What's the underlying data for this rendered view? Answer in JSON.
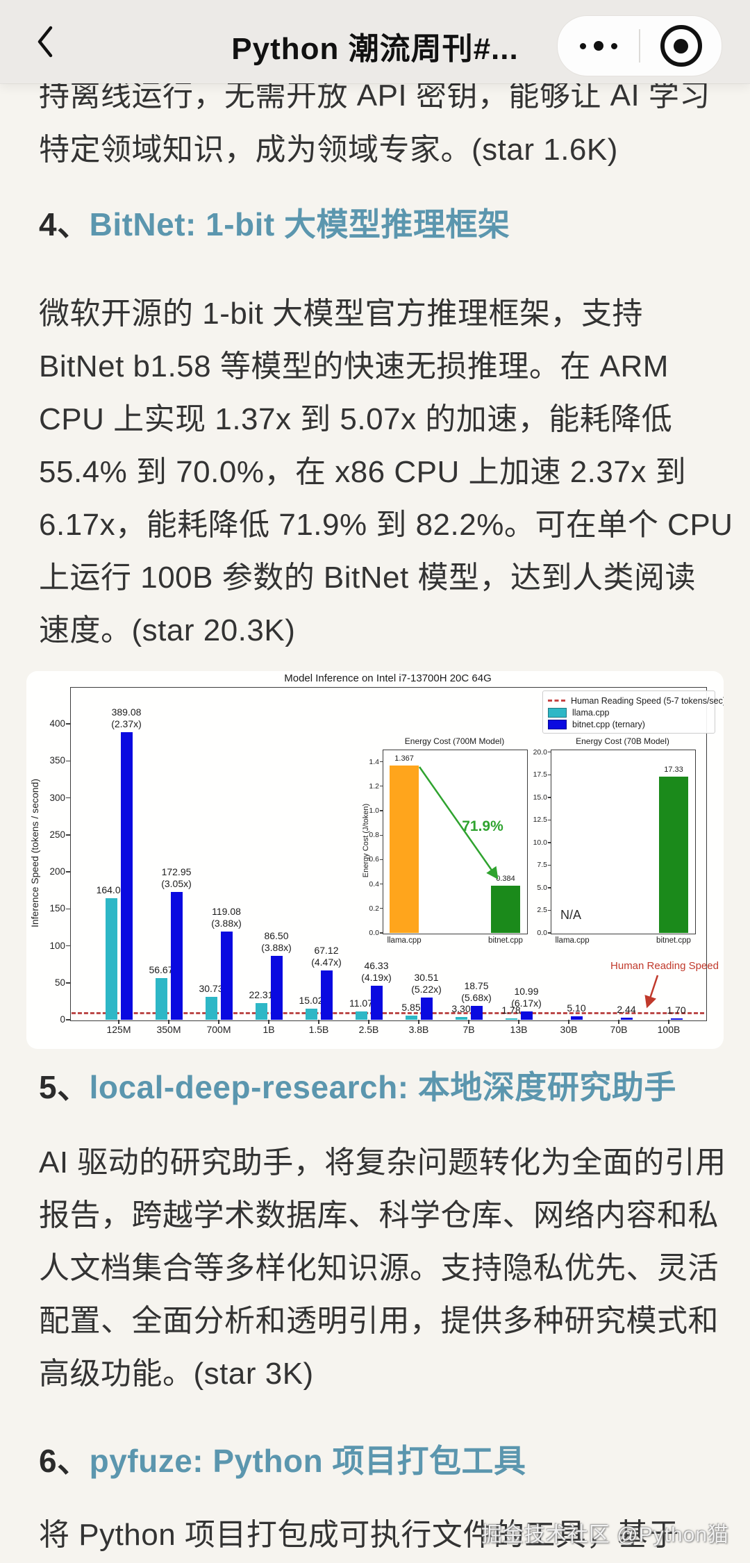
{
  "header": {
    "title": "Python 潮流周刊#...",
    "back_icon": "chevron-left",
    "more_icon": "three-dots",
    "capsule_icon": "target-circle"
  },
  "intro": {
    "lines": [
      "持离线运行，无需开放 API 密钥，能够让 AI 学习",
      "特定领域知识，成为领域专家。(star 1.6K)"
    ]
  },
  "sections": {
    "s4": {
      "number": "4、",
      "link_text": "BitNet: 1-bit 大模型推理框架",
      "lines": [
        "微软开源的 1-bit 大模型官方推理框架，支持",
        "BitNet b1.58 等模型的快速无损推理。在 ARM",
        "CPU 上实现 1.37x 到 5.07x 的加速，能耗降低",
        "55.4% 到 70.0%，在 x86 CPU 上加速 2.37x 到",
        "6.17x，能耗降低 71.9% 到 82.2%。可在单个 CPU",
        "上运行 100B 参数的 BitNet 模型，达到人类阅读",
        "速度。(star 20.3K)"
      ]
    },
    "s5": {
      "number": "5、",
      "link_text": "local-deep-research: 本地深度研究助手",
      "lines": [
        "AI 驱动的研究助手，将复杂问题转化为全面的引用",
        "报告，跨越学术数据库、科学仓库、网络内容和私",
        "人文档集合等多样化知识源。支持隐私优先、灵活",
        "配置、全面分析和透明引用，提供多种研究模式和",
        "高级功能。(star 3K)"
      ]
    },
    "s6": {
      "number": "6、",
      "link_text": "pyfuze: Python 项目打包工具",
      "lines": [
        "将 Python 项目打包成可执行文件的工具，基于"
      ]
    }
  },
  "watermark": "掘金技术社区 @Python猫",
  "chart_data": {
    "type": "bar",
    "title": "Model Inference on Intel i7-13700H 20C 64G",
    "ylabel": "Inference Speed (tokens / second)",
    "ylim": [
      0,
      450
    ],
    "yticks": [
      0,
      50,
      100,
      150,
      200,
      250,
      300,
      350,
      400
    ],
    "grid": false,
    "legend_position": "upper right",
    "categories": [
      "125M",
      "350M",
      "700M",
      "1B",
      "1.5B",
      "2.5B",
      "3.8B",
      "7B",
      "13B",
      "30B",
      "70B",
      "100B"
    ],
    "series": [
      {
        "name": "llama.cpp",
        "color": "#2eb7c6",
        "values": [
          164.04,
          56.67,
          30.73,
          22.31,
          15.02,
          11.07,
          5.85,
          3.3,
          1.78,
          null,
          null,
          null
        ]
      },
      {
        "name": "bitnet.cpp (ternary)",
        "color": "#0a0ae0",
        "values": [
          389.08,
          172.95,
          119.08,
          86.5,
          67.12,
          46.33,
          30.51,
          18.75,
          10.99,
          5.1,
          2.44,
          1.7
        ],
        "speedups": [
          "2.37x",
          "3.05x",
          "3.88x",
          "3.88x",
          "4.47x",
          "4.19x",
          "5.22x",
          "5.68x",
          "6.17x",
          null,
          null,
          null
        ]
      }
    ],
    "reference_line": {
      "value": 7,
      "color": "#b73a3a",
      "style": "dashed",
      "label": "Human Reading Speed (5-7 tokens/sec)"
    },
    "annotation": {
      "text": "Human Reading Speed",
      "color": "#c0392b"
    },
    "legend_items": [
      {
        "type": "dash",
        "color": "#c74444",
        "label": "Human Reading Speed (5-7 tokens/sec)"
      },
      {
        "type": "patch",
        "color": "#2eb7c6",
        "label": "llama.cpp"
      },
      {
        "type": "patch",
        "color": "#0a0ae0",
        "label": "bitnet.cpp (ternary)"
      }
    ],
    "insets": [
      {
        "title": "Energy Cost (700M Model)",
        "ylabel": "Energy Cost (J/token)",
        "ymax": 1.5,
        "yticks": [
          "0.0",
          "0.2",
          "0.4",
          "0.6",
          "0.8",
          "1.0",
          "1.2",
          "1.4"
        ],
        "categories": [
          "llama.cpp",
          "bitnet.cpp"
        ],
        "bars": [
          {
            "label": "llama.cpp",
            "value": 1.367,
            "value_label": "1.367",
            "color": "#ffa51c"
          },
          {
            "label": "bitnet.cpp",
            "value": 0.384,
            "value_label": "0.384",
            "color": "#1b8a1b"
          }
        ],
        "annotation": {
          "text": "71.9%",
          "color": "#2fa32f"
        }
      },
      {
        "title": "Energy Cost (70B Model)",
        "ylabel": "",
        "ymax": 20.3,
        "yticks": [
          "0.0",
          "2.5",
          "5.0",
          "7.5",
          "10.0",
          "12.5",
          "15.0",
          "17.5",
          "20.0"
        ],
        "categories": [
          "llama.cpp",
          "bitnet.cpp"
        ],
        "bars": [
          {
            "label": "llama.cpp",
            "value": null,
            "value_label": "N/A",
            "color": null
          },
          {
            "label": "bitnet.cpp",
            "value": 17.33,
            "value_label": "17.33",
            "color": "#1b8a1b"
          }
        ],
        "na_text": "N/A"
      }
    ]
  }
}
